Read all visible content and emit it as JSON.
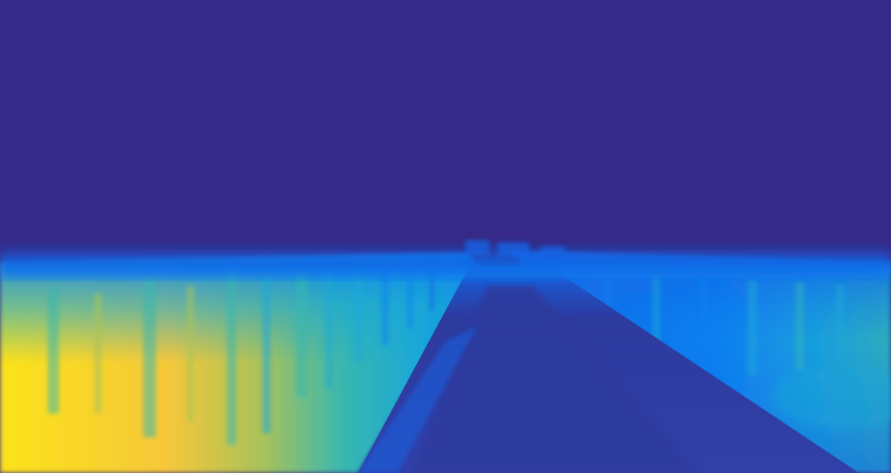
{
  "scene": {
    "type": "depth-map",
    "colormap": "parula",
    "subject": "road-scene",
    "colors": {
      "sky": "#352a87",
      "road_far": "#2d3a9e",
      "road_near": "#3140a8",
      "edge_blue": "#1463e3",
      "mid_blue": "#0f7ff0",
      "cyan": "#1aa7d8",
      "teal": "#38b7b0",
      "green_yellow": "#a9c25a",
      "yellow": "#f6c83a",
      "bright_yellow": "#fbe21a"
    }
  }
}
